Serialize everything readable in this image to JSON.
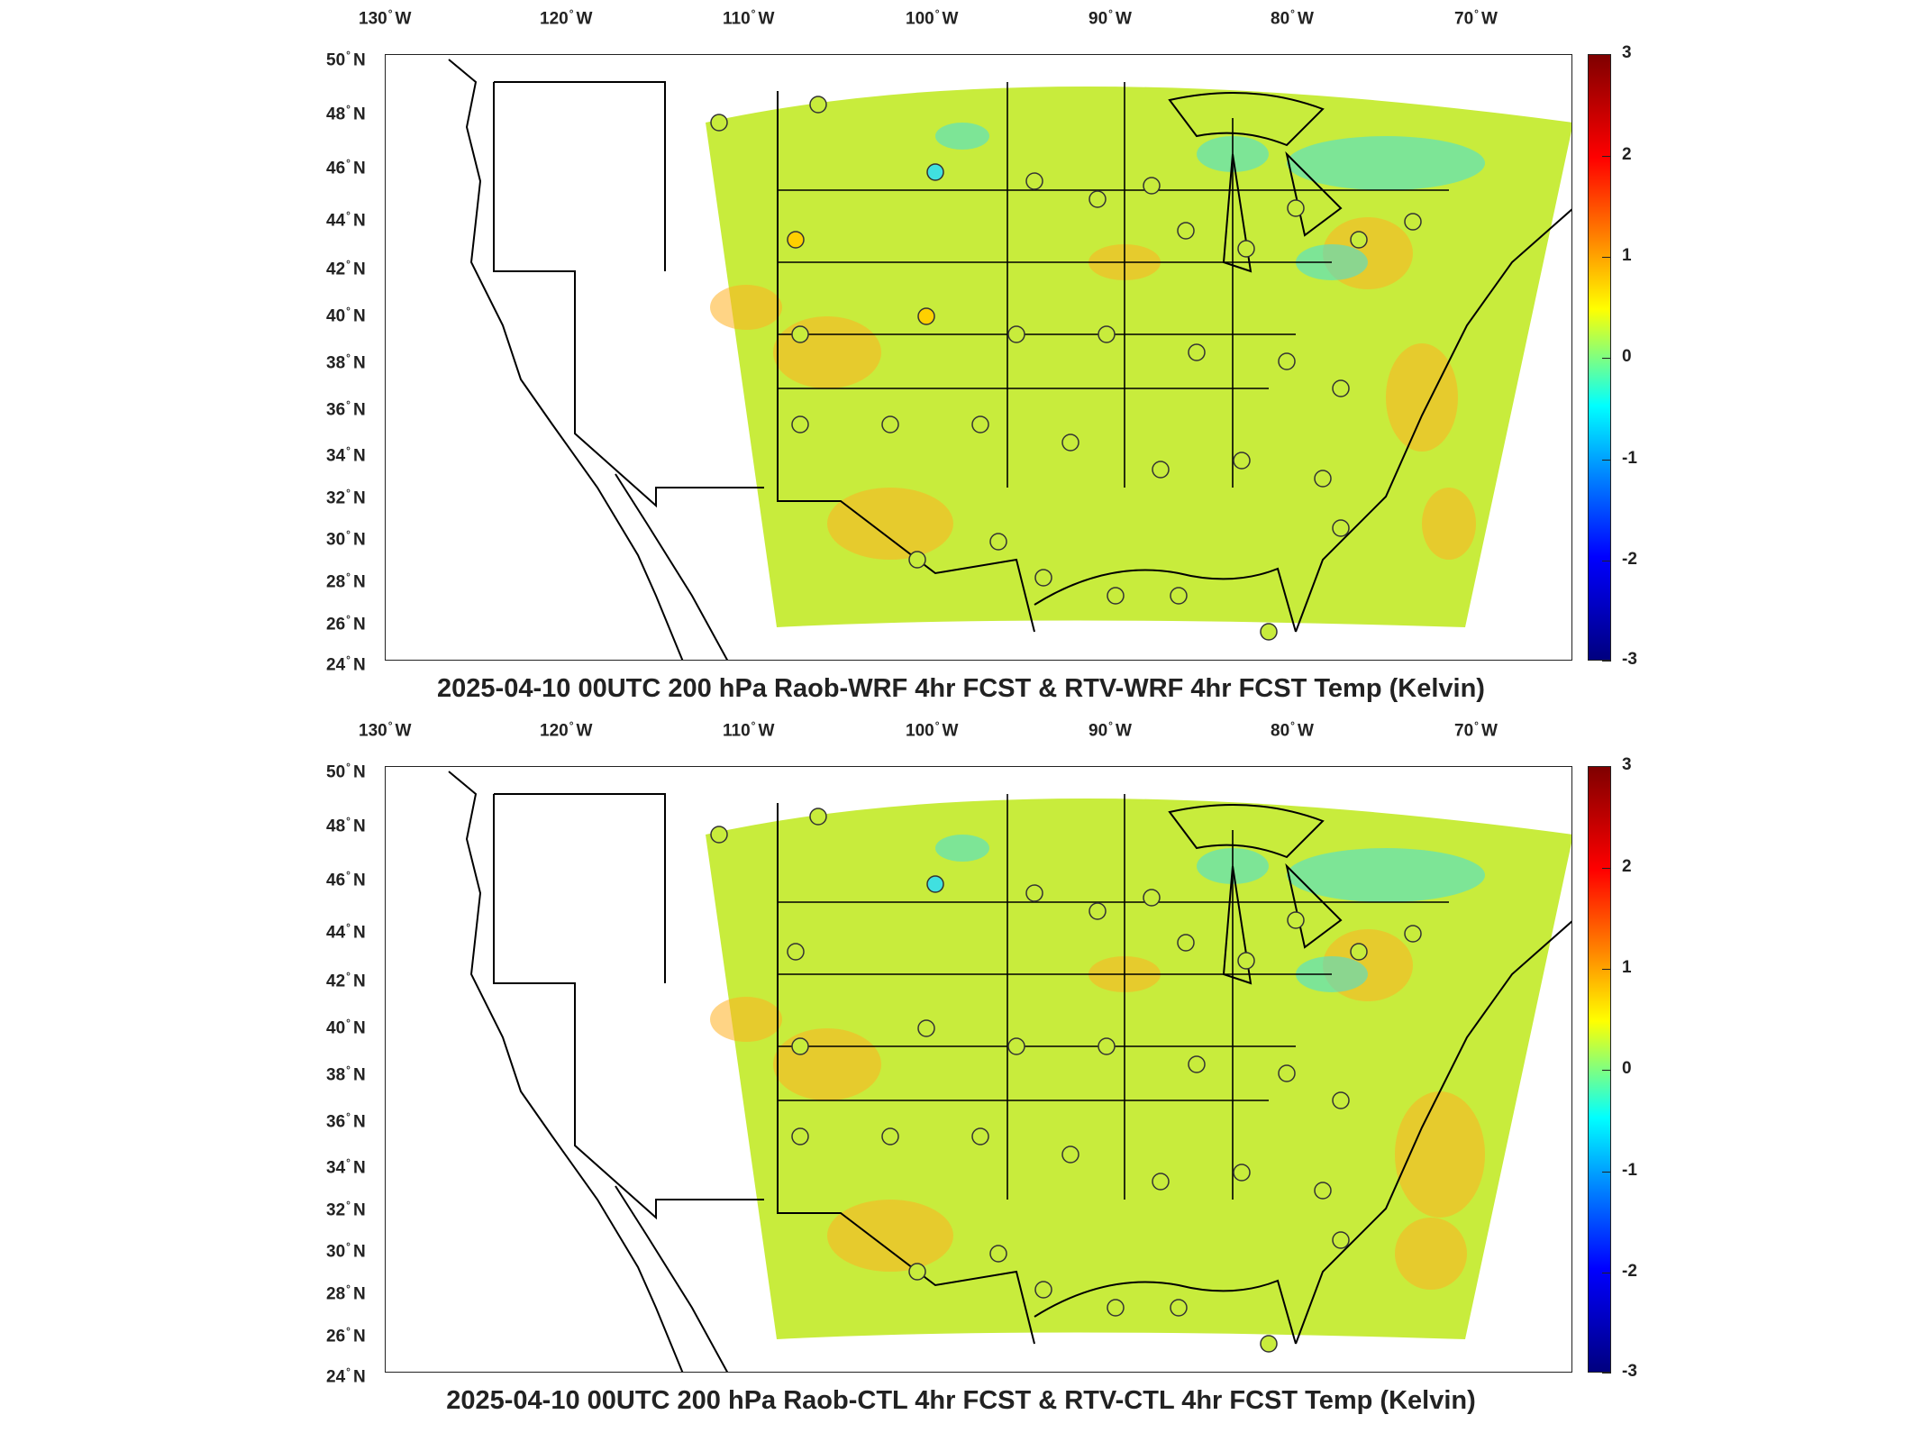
{
  "panels": [
    {
      "title": "2025-04-10 00UTC 200 hPa Raob-WRF 4hr FCST & RTV-WRF 4hr FCST Temp (Kelvin)"
    },
    {
      "title": "2025-04-10 00UTC 200 hPa Raob-CTL 4hr FCST & RTV-CTL 4hr FCST Temp (Kelvin)"
    }
  ],
  "lon_ticks": [
    {
      "num": "130",
      "hemi": "W"
    },
    {
      "num": "120",
      "hemi": "W"
    },
    {
      "num": "110",
      "hemi": "W"
    },
    {
      "num": "100",
      "hemi": "W"
    },
    {
      "num": "90",
      "hemi": "W"
    },
    {
      "num": "80",
      "hemi": "W"
    },
    {
      "num": "70",
      "hemi": "W"
    }
  ],
  "lat_ticks": [
    {
      "num": "50",
      "hemi": "N"
    },
    {
      "num": "48",
      "hemi": "N"
    },
    {
      "num": "46",
      "hemi": "N"
    },
    {
      "num": "44",
      "hemi": "N"
    },
    {
      "num": "42",
      "hemi": "N"
    },
    {
      "num": "40",
      "hemi": "N"
    },
    {
      "num": "38",
      "hemi": "N"
    },
    {
      "num": "36",
      "hemi": "N"
    },
    {
      "num": "34",
      "hemi": "N"
    },
    {
      "num": "32",
      "hemi": "N"
    },
    {
      "num": "30",
      "hemi": "N"
    },
    {
      "num": "28",
      "hemi": "N"
    },
    {
      "num": "26",
      "hemi": "N"
    },
    {
      "num": "24",
      "hemi": "N"
    }
  ],
  "colorbar": {
    "ticks": [
      "3",
      "2",
      "1",
      "0",
      "-1",
      "-2",
      "-3"
    ],
    "colors": [
      "#7f0000",
      "#ff0000",
      "#ff8000",
      "#ffff00",
      "#80ff80",
      "#00ffff",
      "#0080ff",
      "#0000ff",
      "#00007f"
    ]
  },
  "map_colors": {
    "field_base": "#c8ec3c",
    "warm": "#ffb020",
    "cool": "#40e0e0",
    "outline": "#000000"
  }
}
